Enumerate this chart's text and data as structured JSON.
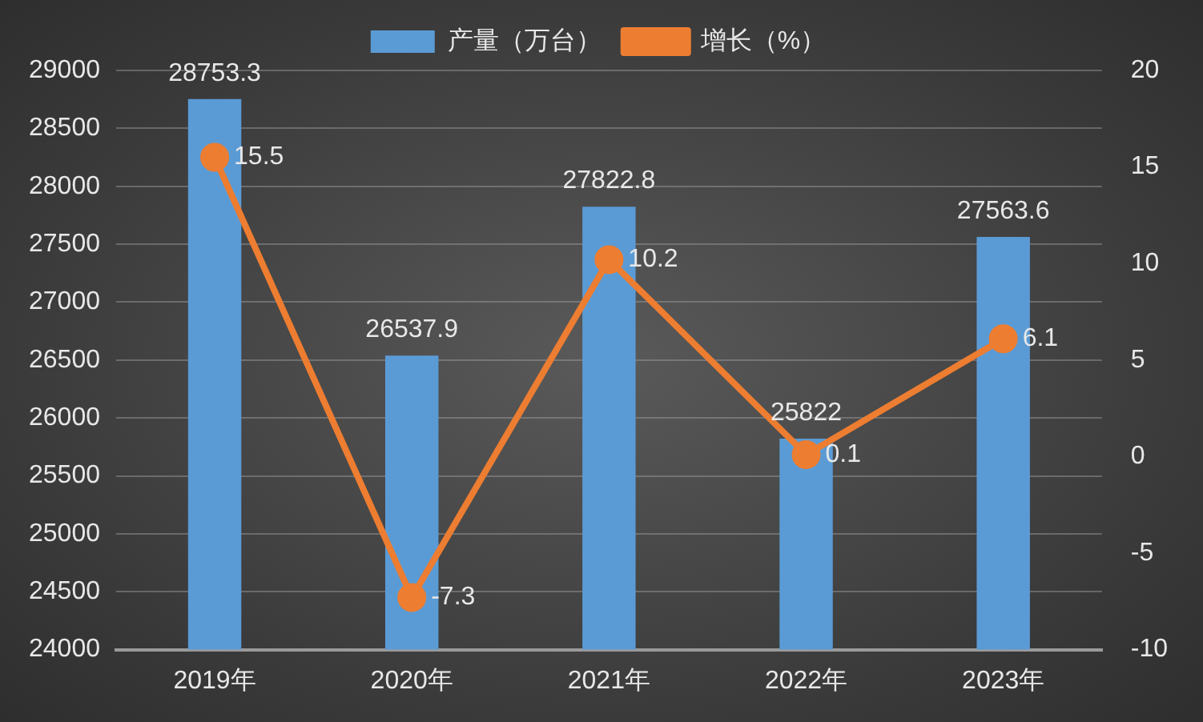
{
  "chart_data": {
    "type": "bar",
    "categories": [
      "2019年",
      "2020年",
      "2021年",
      "2022年",
      "2023年"
    ],
    "series": [
      {
        "name": "产量（万台）",
        "color": "#5b9bd5",
        "values": [
          28753.3,
          26537.9,
          27822.8,
          25822,
          27563.6
        ]
      },
      {
        "name": "增长（%）",
        "type": "line",
        "axis": "y2",
        "color": "#ed7d31",
        "values": [
          15.5,
          -7.3,
          10.2,
          0.1,
          6.1
        ]
      }
    ],
    "ylim": [
      24000,
      29000
    ],
    "yticks": [
      24000,
      24500,
      25000,
      25500,
      26000,
      26500,
      27000,
      27500,
      28000,
      28500,
      29000
    ],
    "y2lim": [
      -10,
      20
    ],
    "y2ticks": [
      -10,
      -5,
      0,
      5,
      10,
      15,
      20
    ],
    "grid": "y",
    "legend": "top",
    "marker": "circle",
    "data_labels": true
  }
}
